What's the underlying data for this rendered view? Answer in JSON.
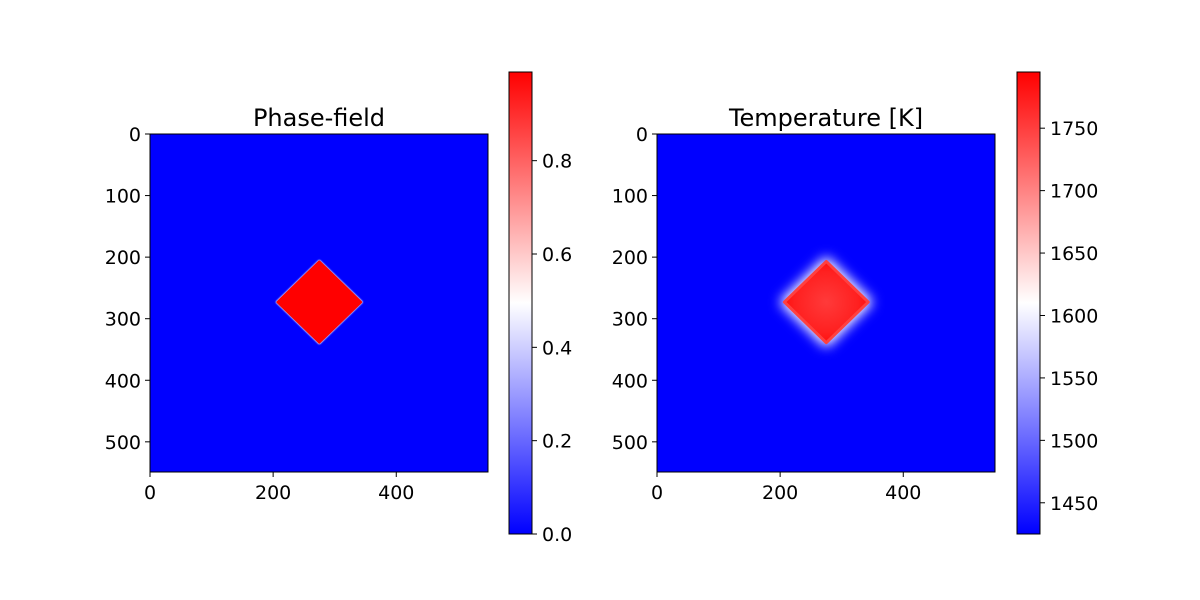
{
  "chart_data": [
    {
      "type": "heatmap",
      "title": "Phase-field",
      "xlabel": "",
      "ylabel": "",
      "xlim": [
        0,
        549
      ],
      "ylim": [
        549,
        0
      ],
      "x_ticks": [
        "0",
        "200",
        "400"
      ],
      "y_ticks": [
        "0",
        "100",
        "200",
        "300",
        "400",
        "500"
      ],
      "colormap": "bwr",
      "colorbar": {
        "range": [
          0.0,
          0.99
        ],
        "ticks": [
          "0.0",
          "0.2",
          "0.4",
          "0.6",
          "0.8"
        ]
      },
      "feature": {
        "shape": "diamond",
        "center": [
          275,
          273
        ],
        "half_width": 68,
        "half_height": 66,
        "inside_value": 0.99,
        "outside_value": 0.0
      }
    },
    {
      "type": "heatmap",
      "title": "Temperature [K]",
      "xlabel": "",
      "ylabel": "",
      "xlim": [
        0,
        549
      ],
      "ylim": [
        549,
        0
      ],
      "x_ticks": [
        "0",
        "200",
        "400"
      ],
      "y_ticks": [
        "0",
        "100",
        "200",
        "300",
        "400",
        "500"
      ],
      "colormap": "bwr",
      "colorbar": {
        "range": [
          1425,
          1795
        ],
        "ticks": [
          "1450",
          "1500",
          "1550",
          "1600",
          "1650",
          "1700",
          "1750"
        ]
      },
      "feature": {
        "shape": "diamond",
        "center": [
          275,
          273
        ],
        "half_width": 68,
        "half_height": 66,
        "inside_value": 1780,
        "outside_value": 1425
      }
    }
  ],
  "colors": {
    "cmap_low": "#0000ff",
    "cmap_mid": "#ffffff",
    "cmap_high": "#ff0000"
  }
}
